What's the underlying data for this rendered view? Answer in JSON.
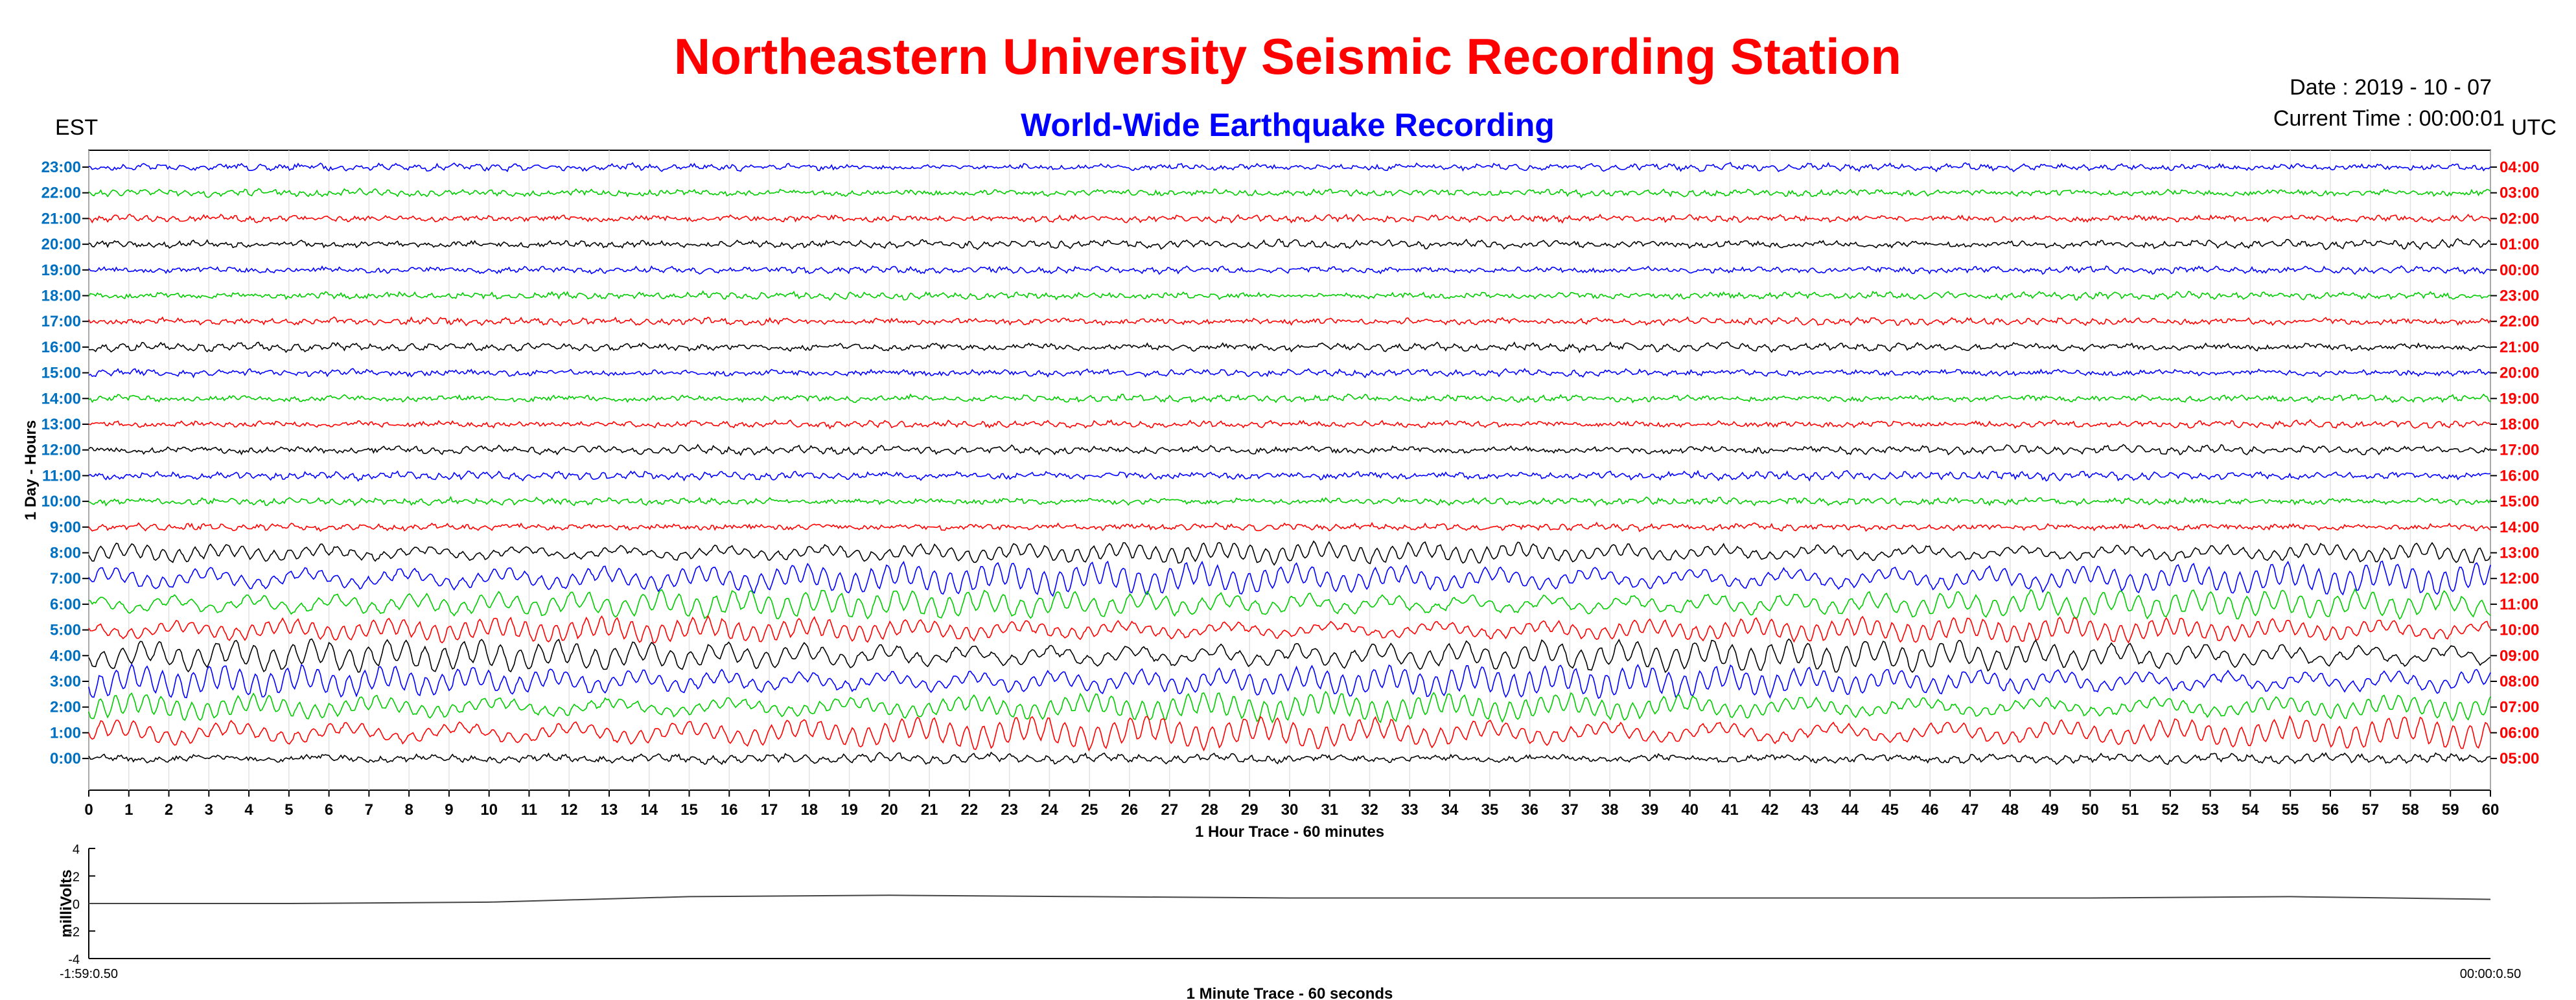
{
  "header": {
    "title": "Northeastern University Seismic Recording Station",
    "subtitle": "World-Wide Earthquake Recording",
    "date_text": "Date : 2019 - 10 - 07",
    "time_text": "Current Time : 00:00:01",
    "left_zone": "EST",
    "right_zone": "UTC"
  },
  "colors": {
    "title": "#ff0000",
    "subtitle": "#0000ff",
    "est_labels": "#0070c0",
    "utc_labels": "#ff0000",
    "trace_cycle": [
      "#0000ff",
      "#00cc00",
      "#ff0000",
      "#000000"
    ]
  },
  "chart_data": [
    {
      "type": "line",
      "name": "helicorder",
      "ylabel": "1 Day - Hours",
      "xlabel": "1 Hour Trace - 60 minutes",
      "xlim": [
        0,
        60
      ],
      "x_ticks": [
        0,
        1,
        2,
        3,
        4,
        5,
        6,
        7,
        8,
        9,
        10,
        11,
        12,
        13,
        14,
        15,
        16,
        17,
        18,
        19,
        20,
        21,
        22,
        23,
        24,
        25,
        26,
        27,
        28,
        29,
        30,
        31,
        32,
        33,
        34,
        35,
        36,
        37,
        38,
        39,
        40,
        41,
        42,
        43,
        44,
        45,
        46,
        47,
        48,
        49,
        50,
        51,
        52,
        53,
        54,
        55,
        56,
        57,
        58,
        59,
        60
      ],
      "grid": true,
      "est_labels": [
        "23:00",
        "22:00",
        "21:00",
        "20:00",
        "19:00",
        "18:00",
        "17:00",
        "16:00",
        "15:00",
        "14:00",
        "13:00",
        "12:00",
        "11:00",
        "10:00",
        "9:00",
        "8:00",
        "7:00",
        "6:00",
        "5:00",
        "4:00",
        "3:00",
        "2:00",
        "1:00",
        "0:00"
      ],
      "utc_labels": [
        "04:00",
        "03:00",
        "02:00",
        "01:00",
        "00:00",
        "23:00",
        "22:00",
        "21:00",
        "20:00",
        "19:00",
        "18:00",
        "17:00",
        "16:00",
        "15:00",
        "14:00",
        "13:00",
        "12:00",
        "11:00",
        "10:00",
        "09:00",
        "08:00",
        "07:00",
        "06:00",
        "05:00"
      ],
      "trace_colors": [
        "blue",
        "green",
        "red",
        "black",
        "blue",
        "green",
        "red",
        "black",
        "blue",
        "green",
        "red",
        "black",
        "blue",
        "green",
        "red",
        "black",
        "blue",
        "green",
        "red",
        "black",
        "blue",
        "green",
        "red",
        "black"
      ],
      "trace_amplitude": [
        0.15,
        0.15,
        0.15,
        0.2,
        0.15,
        0.15,
        0.15,
        0.2,
        0.15,
        0.15,
        0.15,
        0.2,
        0.2,
        0.15,
        0.15,
        0.6,
        0.9,
        0.8,
        0.7,
        0.9,
        0.9,
        0.8,
        0.9,
        0.25
      ]
    },
    {
      "type": "line",
      "name": "minute-trace",
      "ylabel": "milliVolts",
      "xlabel": "1 Minute Trace  - 60 seconds",
      "ylim": [
        -4,
        4
      ],
      "y_ticks": [
        4,
        2,
        0,
        -2,
        -4
      ],
      "x_start_label": "-1:59:0.50",
      "x_end_label": "00:00:0.50",
      "x": [
        0,
        5,
        10,
        15,
        20,
        25,
        30,
        35,
        40,
        45,
        50,
        55,
        60
      ],
      "y": [
        0,
        0,
        0.1,
        0.5,
        0.6,
        0.5,
        0.4,
        0.4,
        0.4,
        0.4,
        0.4,
        0.5,
        0.3
      ]
    }
  ]
}
